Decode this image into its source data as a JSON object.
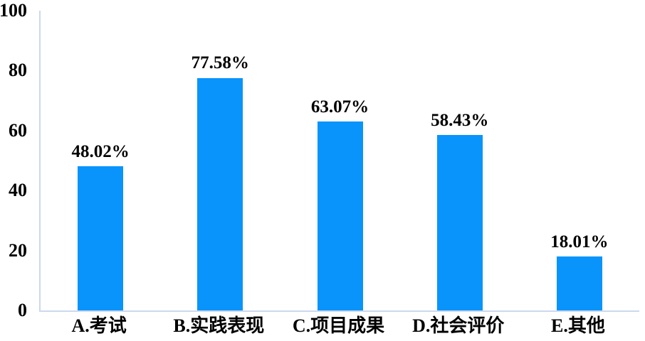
{
  "chart": {
    "background": "#FFFFFF"
  },
  "chart_data": {
    "type": "bar",
    "title": "",
    "xlabel": "",
    "ylabel": "",
    "categories": [
      "A.考试",
      "B.实践表现",
      "C.项目成果",
      "D.社会评价",
      "E.其他"
    ],
    "values": [
      48.02,
      77.58,
      63.07,
      58.43,
      18.01
    ],
    "value_labels": [
      "48.02%",
      "77.58%",
      "63.07%",
      "58.43%",
      "18.01%"
    ],
    "ylim": [
      0,
      100
    ],
    "yticks": [
      0,
      20,
      40,
      60,
      80,
      100
    ],
    "grid": false,
    "legend": false,
    "bar_color": "#0894FB",
    "axis_line_color": "#CDD8EE",
    "text_color": "#000000"
  }
}
